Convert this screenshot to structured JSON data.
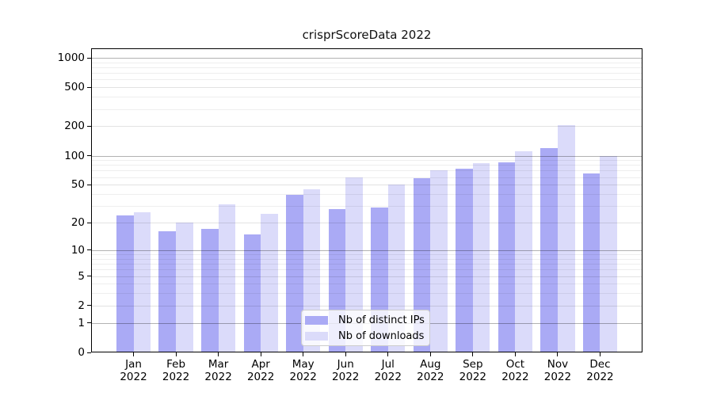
{
  "chart_data": {
    "type": "bar",
    "title": "crisprScoreData 2022",
    "x_axis": {
      "categories": [
        "Jan",
        "Feb",
        "Mar",
        "Apr",
        "May",
        "Jun",
        "Jul",
        "Aug",
        "Sep",
        "Oct",
        "Nov",
        "Dec"
      ],
      "year_label": "2022"
    },
    "y_axis": {
      "scale": "log1p",
      "ticks": [
        0,
        1,
        2,
        5,
        10,
        20,
        50,
        100,
        200,
        500,
        1000
      ],
      "major_gridlines": [
        1,
        10,
        100,
        1000
      ],
      "mid_gridlines": [
        2,
        5,
        20,
        50,
        200,
        500
      ],
      "range": [
        0,
        1000
      ]
    },
    "series": [
      {
        "key": "ips",
        "name": "Nb of distinct IPs",
        "color": "#aaaaf5",
        "values": [
          24,
          16,
          17,
          15,
          39,
          28,
          29,
          58,
          73,
          85,
          120,
          66
        ]
      },
      {
        "key": "downloads",
        "name": "Nb of downloads",
        "color": "#dbdbfa",
        "values": [
          26,
          20,
          31,
          25,
          45,
          60,
          50,
          70,
          84,
          110,
          205,
          100
        ]
      }
    ],
    "legend": {
      "position": "inside-bottom-center"
    },
    "grid": {
      "horizontal": true,
      "minor": true
    }
  },
  "style": {
    "background": "#ffffff",
    "axis_color": "#000000",
    "bar_color_ips": "#aaaaf5",
    "bar_color_downloads": "#dbdbfa",
    "major_grid_color": "#b3b3b3",
    "mid_grid_color": "#e2e2e2",
    "minor_grid_color": "#efefef",
    "legend_border_color": "#cccccc"
  }
}
